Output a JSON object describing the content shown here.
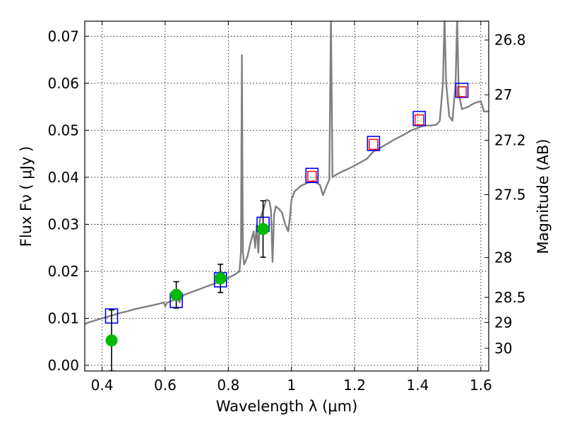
{
  "chart_data": {
    "type": "scatter",
    "title": "",
    "xlabel": "Wavelength  λ (μm)",
    "ylabel": "Flux  Fν  ( μJy )",
    "ylabel_right": "Magnitude (AB)",
    "xlim": [
      0.345,
      1.625
    ],
    "ylim": [
      -0.0012,
      0.0732
    ],
    "grid": true,
    "x_ticks": [
      {
        "value": 0.4,
        "label": "0.4"
      },
      {
        "value": 0.6,
        "label": "0.6"
      },
      {
        "value": 0.8,
        "label": "0.8"
      },
      {
        "value": 1.0,
        "label": "1"
      },
      {
        "value": 1.2,
        "label": "1.2"
      },
      {
        "value": 1.4,
        "label": "1.4"
      },
      {
        "value": 1.6,
        "label": "1.6"
      }
    ],
    "y_ticks": [
      {
        "value": 0.0,
        "label": "0.00"
      },
      {
        "value": 0.01,
        "label": "0.01"
      },
      {
        "value": 0.02,
        "label": "0.02"
      },
      {
        "value": 0.03,
        "label": "0.03"
      },
      {
        "value": 0.04,
        "label": "0.04"
      },
      {
        "value": 0.05,
        "label": "0.05"
      },
      {
        "value": 0.06,
        "label": "0.06"
      },
      {
        "value": 0.07,
        "label": "0.07"
      }
    ],
    "y2_ticks": [
      {
        "value": 26.8,
        "label": "26.8"
      },
      {
        "value": 27.0,
        "label": "27"
      },
      {
        "value": 27.2,
        "label": "27.2"
      },
      {
        "value": 27.5,
        "label": "27.5"
      },
      {
        "value": 28.0,
        "label": "28"
      },
      {
        "value": 28.5,
        "label": "28.5"
      },
      {
        "value": 29.0,
        "label": "29"
      },
      {
        "value": 30.0,
        "label": "30"
      }
    ],
    "series": [
      {
        "kind": "model-spectrum",
        "color": "#808080",
        "points": [
          [
            0.345,
            0.0088
          ],
          [
            0.36,
            0.0092
          ],
          [
            0.38,
            0.0096
          ],
          [
            0.4,
            0.01
          ],
          [
            0.42,
            0.0104
          ],
          [
            0.44,
            0.0108
          ],
          [
            0.46,
            0.0112
          ],
          [
            0.48,
            0.0115
          ],
          [
            0.5,
            0.0119
          ],
          [
            0.52,
            0.0122
          ],
          [
            0.54,
            0.0125
          ],
          [
            0.56,
            0.0128
          ],
          [
            0.58,
            0.0131
          ],
          [
            0.595,
            0.0134
          ],
          [
            0.6,
            0.0126
          ],
          [
            0.605,
            0.0133
          ],
          [
            0.62,
            0.0137
          ],
          [
            0.64,
            0.0143
          ],
          [
            0.645,
            0.0134
          ],
          [
            0.65,
            0.0144
          ],
          [
            0.66,
            0.015
          ],
          [
            0.68,
            0.0155
          ],
          [
            0.7,
            0.016
          ],
          [
            0.72,
            0.0165
          ],
          [
            0.74,
            0.017
          ],
          [
            0.76,
            0.0175
          ],
          [
            0.78,
            0.018
          ],
          [
            0.8,
            0.0186
          ],
          [
            0.82,
            0.0193
          ],
          [
            0.835,
            0.02
          ],
          [
            0.84,
            0.024
          ],
          [
            0.843,
            0.066
          ],
          [
            0.846,
            0.024
          ],
          [
            0.85,
            0.0215
          ],
          [
            0.86,
            0.023
          ],
          [
            0.87,
            0.026
          ],
          [
            0.88,
            0.0285
          ],
          [
            0.885,
            0.025
          ],
          [
            0.89,
            0.03
          ],
          [
            0.895,
            0.024
          ],
          [
            0.9,
            0.031
          ],
          [
            0.91,
            0.033
          ],
          [
            0.92,
            0.0352
          ],
          [
            0.93,
            0.035
          ],
          [
            0.935,
            0.033
          ],
          [
            0.94,
            0.022
          ],
          [
            0.945,
            0.032
          ],
          [
            0.95,
            0.0338
          ],
          [
            0.96,
            0.0333
          ],
          [
            0.97,
            0.0325
          ],
          [
            0.98,
            0.03
          ],
          [
            0.99,
            0.0285
          ],
          [
            0.995,
            0.0315
          ],
          [
            1.0,
            0.0352
          ],
          [
            1.01,
            0.037
          ],
          [
            1.03,
            0.0382
          ],
          [
            1.05,
            0.0388
          ],
          [
            1.07,
            0.0392
          ],
          [
            1.09,
            0.0384
          ],
          [
            1.1,
            0.0362
          ],
          [
            1.11,
            0.038
          ],
          [
            1.12,
            0.0395
          ],
          [
            1.125,
            0.074
          ],
          [
            1.13,
            0.04
          ],
          [
            1.14,
            0.0405
          ],
          [
            1.16,
            0.0412
          ],
          [
            1.18,
            0.0418
          ],
          [
            1.2,
            0.0425
          ],
          [
            1.22,
            0.0432
          ],
          [
            1.24,
            0.044
          ],
          [
            1.25,
            0.0448
          ],
          [
            1.26,
            0.0455
          ],
          [
            1.28,
            0.0462
          ],
          [
            1.3,
            0.047
          ],
          [
            1.32,
            0.0478
          ],
          [
            1.34,
            0.0485
          ],
          [
            1.36,
            0.0492
          ],
          [
            1.38,
            0.05
          ],
          [
            1.4,
            0.0505
          ],
          [
            1.42,
            0.051
          ],
          [
            1.44,
            0.051
          ],
          [
            1.46,
            0.0512
          ],
          [
            1.47,
            0.052
          ],
          [
            1.48,
            0.06
          ],
          [
            1.485,
            0.074
          ],
          [
            1.49,
            0.06
          ],
          [
            1.5,
            0.053
          ],
          [
            1.51,
            0.052
          ],
          [
            1.52,
            0.06
          ],
          [
            1.525,
            0.074
          ],
          [
            1.53,
            0.058
          ],
          [
            1.54,
            0.0545
          ],
          [
            1.56,
            0.055
          ],
          [
            1.58,
            0.0558
          ],
          [
            1.6,
            0.0562
          ],
          [
            1.61,
            0.054
          ],
          [
            1.625,
            0.054
          ]
        ]
      },
      {
        "kind": "model-photometry",
        "marker": "square",
        "color": "#0000ff",
        "points": [
          [
            0.43,
            0.0105
          ],
          [
            0.635,
            0.0138
          ],
          [
            0.775,
            0.0182
          ],
          [
            0.91,
            0.03
          ],
          [
            1.065,
            0.0404
          ],
          [
            1.26,
            0.0472
          ],
          [
            1.405,
            0.0525
          ],
          [
            1.54,
            0.0585
          ]
        ]
      },
      {
        "kind": "upper-bands",
        "marker": "small-square",
        "color": "#ff0000",
        "points": [
          [
            1.065,
            0.0402
          ],
          [
            1.26,
            0.047
          ],
          [
            1.405,
            0.0522
          ],
          [
            1.54,
            0.0582
          ]
        ]
      },
      {
        "kind": "observed",
        "marker": "circle",
        "color": "#00bb00",
        "points": [
          {
            "x": 0.43,
            "y": 0.0053,
            "err": 0.0065
          },
          {
            "x": 0.635,
            "y": 0.015,
            "err": 0.0028
          },
          {
            "x": 0.775,
            "y": 0.0185,
            "err": 0.003
          },
          {
            "x": 0.91,
            "y": 0.029,
            "err": 0.006
          }
        ]
      }
    ]
  }
}
